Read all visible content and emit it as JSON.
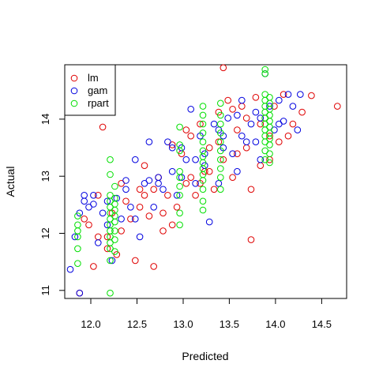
{
  "chart_data": {
    "type": "scatter",
    "xlabel": "Predicted",
    "ylabel": "Actual",
    "xlim": [
      11.74,
      14.78
    ],
    "ylim": [
      10.96,
      14.9
    ],
    "x_ticks": [
      12.0,
      12.5,
      13.0,
      13.5,
      14.0,
      14.5
    ],
    "x_tick_labels": [
      "12.0",
      "12.5",
      "13.0",
      "13.5",
      "14.0",
      "14.5"
    ],
    "y_ticks": [
      11,
      12,
      13,
      14
    ],
    "y_tick_labels": [
      "11",
      "12",
      "13",
      "14"
    ],
    "grid": false,
    "legend": {
      "position": "top-left"
    },
    "series": [
      {
        "name": "lm",
        "color": "#DF0000",
        "points": [
          [
            11.9,
            11.05
          ],
          [
            11.95,
            12.3
          ],
          [
            12.0,
            12.2
          ],
          [
            12.05,
            11.5
          ],
          [
            12.1,
            12.7
          ],
          [
            12.15,
            13.85
          ],
          [
            12.2,
            12.0
          ],
          [
            12.25,
            12.4
          ],
          [
            12.3,
            11.7
          ],
          [
            12.35,
            12.1
          ],
          [
            12.4,
            12.6
          ],
          [
            12.45,
            12.3
          ],
          [
            12.5,
            11.6
          ],
          [
            12.55,
            12.8
          ],
          [
            12.6,
            13.2
          ],
          [
            12.65,
            12.35
          ],
          [
            12.7,
            11.5
          ],
          [
            12.75,
            13.0
          ],
          [
            12.8,
            12.1
          ],
          [
            12.85,
            12.7
          ],
          [
            12.9,
            13.55
          ],
          [
            12.95,
            12.5
          ],
          [
            13.0,
            13.4
          ],
          [
            13.05,
            12.9
          ],
          [
            13.1,
            13.7
          ],
          [
            13.15,
            12.7
          ],
          [
            13.2,
            13.9
          ],
          [
            13.25,
            13.1
          ],
          [
            13.3,
            13.5
          ],
          [
            13.35,
            12.8
          ],
          [
            13.4,
            14.1
          ],
          [
            13.45,
            13.3
          ],
          [
            13.5,
            14.3
          ],
          [
            13.55,
            13.0
          ],
          [
            13.6,
            13.8
          ],
          [
            13.65,
            14.2
          ],
          [
            13.7,
            13.5
          ],
          [
            13.75,
            12.8
          ],
          [
            13.8,
            14.35
          ],
          [
            13.85,
            13.2
          ],
          [
            13.9,
            14.0
          ],
          [
            13.95,
            13.7
          ],
          [
            14.0,
            14.2
          ],
          [
            14.05,
            13.6
          ],
          [
            14.1,
            14.4
          ],
          [
            14.2,
            13.9
          ],
          [
            14.3,
            14.1
          ],
          [
            14.4,
            14.38
          ],
          [
            14.68,
            14.2
          ],
          [
            13.45,
            14.85
          ],
          [
            13.75,
            11.95
          ],
          [
            12.55,
            12.5
          ],
          [
            12.7,
            12.8
          ],
          [
            12.9,
            12.2
          ],
          [
            13.1,
            13.0
          ],
          [
            13.2,
            12.9
          ],
          [
            13.3,
            13.1
          ],
          [
            12.35,
            12.9
          ],
          [
            12.1,
            12.0
          ],
          [
            12.2,
            11.8
          ],
          [
            13.6,
            13.4
          ],
          [
            13.7,
            14.0
          ],
          [
            13.85,
            13.9
          ],
          [
            13.95,
            13.3
          ],
          [
            14.15,
            13.7
          ],
          [
            12.6,
            12.7
          ],
          [
            12.8,
            12.4
          ],
          [
            13.05,
            13.8
          ],
          [
            13.4,
            13.6
          ],
          [
            13.55,
            14.15
          ]
        ]
      },
      {
        "name": "gam",
        "color": "#0000DF",
        "points": [
          [
            11.8,
            11.45
          ],
          [
            11.85,
            12.0
          ],
          [
            11.9,
            12.4
          ],
          [
            11.95,
            12.6
          ],
          [
            12.0,
            12.5
          ],
          [
            12.05,
            12.7
          ],
          [
            12.1,
            11.9
          ],
          [
            12.15,
            12.4
          ],
          [
            12.2,
            12.2
          ],
          [
            12.25,
            11.6
          ],
          [
            12.3,
            12.65
          ],
          [
            12.35,
            12.3
          ],
          [
            12.4,
            12.95
          ],
          [
            12.45,
            12.5
          ],
          [
            12.5,
            13.3
          ],
          [
            12.55,
            12.0
          ],
          [
            12.6,
            12.9
          ],
          [
            12.65,
            13.6
          ],
          [
            12.7,
            12.5
          ],
          [
            12.75,
            13.0
          ],
          [
            12.8,
            12.8
          ],
          [
            12.85,
            13.6
          ],
          [
            12.9,
            13.1
          ],
          [
            12.95,
            12.7
          ],
          [
            13.0,
            13.5
          ],
          [
            13.05,
            13.3
          ],
          [
            13.1,
            14.15
          ],
          [
            13.15,
            12.9
          ],
          [
            13.2,
            13.7
          ],
          [
            13.25,
            13.4
          ],
          [
            13.3,
            12.25
          ],
          [
            13.35,
            13.9
          ],
          [
            13.4,
            12.9
          ],
          [
            13.45,
            13.7
          ],
          [
            13.5,
            14.0
          ],
          [
            13.55,
            13.4
          ],
          [
            13.6,
            13.1
          ],
          [
            13.65,
            14.3
          ],
          [
            13.7,
            13.6
          ],
          [
            13.75,
            13.9
          ],
          [
            13.8,
            14.1
          ],
          [
            13.85,
            13.3
          ],
          [
            13.9,
            14.75
          ],
          [
            13.95,
            14.2
          ],
          [
            14.0,
            13.8
          ],
          [
            14.05,
            14.3
          ],
          [
            14.1,
            13.95
          ],
          [
            14.15,
            14.4
          ],
          [
            14.2,
            14.2
          ],
          [
            14.25,
            13.8
          ],
          [
            14.28,
            14.4
          ],
          [
            11.9,
            11.05
          ],
          [
            12.05,
            12.55
          ],
          [
            12.5,
            12.3
          ],
          [
            12.75,
            12.9
          ],
          [
            13.0,
            13.0
          ],
          [
            13.25,
            13.2
          ],
          [
            13.45,
            13.5
          ],
          [
            13.65,
            13.7
          ],
          [
            13.85,
            14.0
          ],
          [
            12.2,
            12.6
          ],
          [
            12.4,
            12.8
          ],
          [
            12.65,
            12.95
          ],
          [
            12.9,
            13.5
          ],
          [
            13.15,
            13.3
          ],
          [
            13.4,
            13.8
          ],
          [
            13.6,
            14.05
          ],
          [
            13.8,
            13.6
          ],
          [
            14.05,
            13.9
          ],
          [
            11.95,
            12.7
          ]
        ]
      },
      {
        "name": "rpart",
        "color": "#00DF00",
        "clusters": [
          {
            "x": 11.88,
            "y": [
              11.55,
              11.8,
              12.0,
              12.1,
              12.2,
              12.35
            ]
          },
          {
            "x": 12.23,
            "y": [
              11.05,
              11.6,
              11.8,
              11.9,
              12.0,
              12.1,
              12.2,
              12.3,
              12.4,
              12.5,
              12.6,
              12.7,
              13.05,
              13.3
            ]
          },
          {
            "x": 12.28,
            "y": [
              11.75,
              11.95,
              12.1,
              12.25,
              12.35,
              12.45,
              12.55,
              12.65,
              12.85
            ]
          },
          {
            "x": 12.98,
            "y": [
              12.2,
              12.4,
              12.7,
              12.85,
              13.0,
              13.1,
              13.45,
              13.55,
              13.85
            ]
          },
          {
            "x": 13.23,
            "y": [
              12.45,
              12.6,
              12.8,
              12.95,
              13.05,
              13.15,
              13.25,
              13.35,
              13.45,
              13.6,
              13.75,
              13.9,
              14.05,
              14.2
            ]
          },
          {
            "x": 13.42,
            "y": [
              12.8,
              13.0,
              13.15,
              13.3,
              13.45,
              13.6,
              13.75,
              13.9,
              14.05,
              14.25
            ]
          },
          {
            "x": 13.9,
            "y": [
              13.3,
              13.45,
              13.6,
              13.7,
              13.8,
              13.9,
              14.0,
              14.1,
              14.2,
              14.3,
              14.4,
              14.75,
              14.82
            ]
          },
          {
            "x": 13.95,
            "y": [
              13.25,
              13.4,
              13.55,
              13.65,
              13.75,
              13.85,
              13.95,
              14.05,
              14.15,
              14.25,
              14.35
            ]
          }
        ]
      }
    ]
  }
}
